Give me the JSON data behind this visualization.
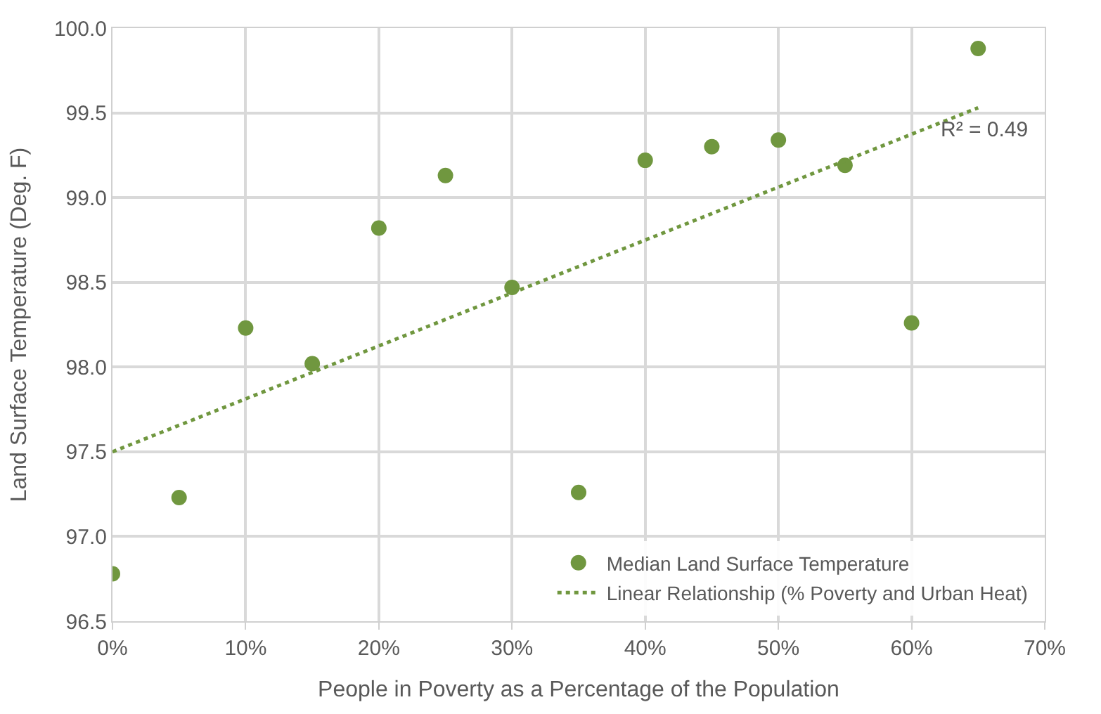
{
  "chart_data": {
    "type": "scatter",
    "xlabel": "People in Poverty as a Percentage of the Population",
    "ylabel": "Land Surface Temperature (Deg. F)",
    "x": [
      0,
      5,
      10,
      15,
      20,
      25,
      30,
      35,
      40,
      45,
      50,
      55,
      60,
      65
    ],
    "series": [
      {
        "name": "Median Land Surface Temperature",
        "color": "#70973f",
        "marker": "circle",
        "values": [
          96.78,
          97.23,
          98.23,
          98.02,
          98.82,
          99.13,
          98.47,
          97.26,
          99.22,
          99.3,
          99.34,
          99.19,
          98.26,
          99.88
        ]
      },
      {
        "name": "Linear Relationship (% Poverty and Urban Heat)",
        "color": "#70973f",
        "type": "line",
        "line_style": "dotted",
        "marker": "none",
        "x": [
          0,
          65
        ],
        "values": [
          97.5,
          99.53
        ]
      }
    ],
    "annotations": [
      {
        "text": "R² = 0.49",
        "x": 62,
        "y": 99.4
      }
    ],
    "xlim": [
      0,
      70
    ],
    "ylim": [
      96.5,
      100
    ],
    "xticks": [
      {
        "value": 0,
        "label": "0%"
      },
      {
        "value": 10,
        "label": "10%"
      },
      {
        "value": 20,
        "label": "20%"
      },
      {
        "value": 30,
        "label": "30%"
      },
      {
        "value": 40,
        "label": "40%"
      },
      {
        "value": 50,
        "label": "50%"
      },
      {
        "value": 60,
        "label": "60%"
      },
      {
        "value": 70,
        "label": "70%"
      }
    ],
    "yticks": [
      {
        "value": 96.5,
        "label": "96.5"
      },
      {
        "value": 97,
        "label": "97.0"
      },
      {
        "value": 97.5,
        "label": "97.5"
      },
      {
        "value": 98,
        "label": "98.0"
      },
      {
        "value": 98.5,
        "label": "98.5"
      },
      {
        "value": 99,
        "label": "99.0"
      },
      {
        "value": 99.5,
        "label": "99.5"
      },
      {
        "value": 100,
        "label": "100.0"
      }
    ],
    "grid": true,
    "legend": "bottom right"
  }
}
